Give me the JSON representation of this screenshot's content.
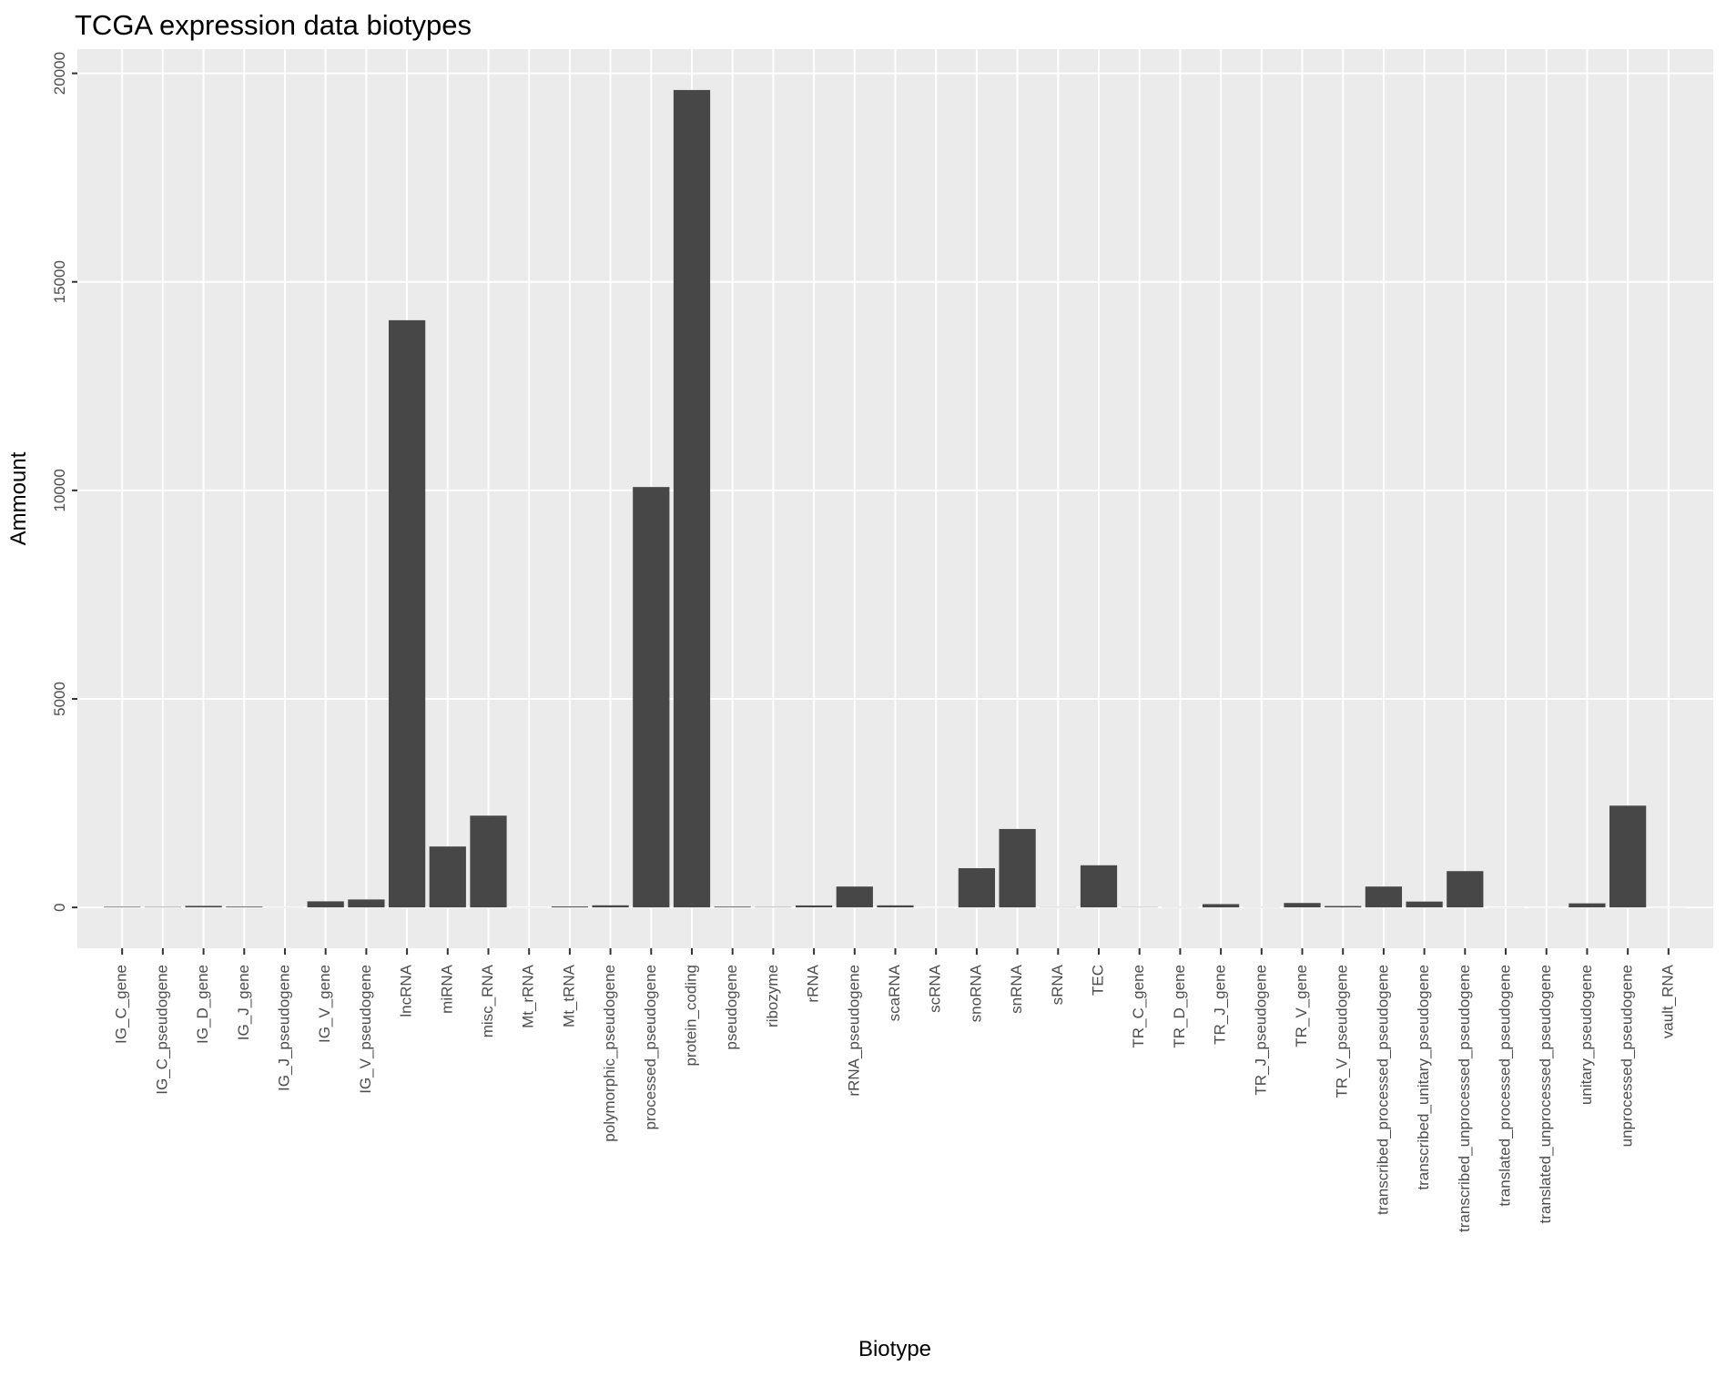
{
  "chart_data": {
    "type": "bar",
    "title": "TCGA expression data biotypes",
    "x_label": "Biotype",
    "y_label": "Ammount",
    "categories": [
      "IG_C_gene",
      "IG_C_pseudogene",
      "IG_D_gene",
      "IG_J_gene",
      "IG_J_pseudogene",
      "IG_V_gene",
      "IG_V_pseudogene",
      "lncRNA",
      "miRNA",
      "misc_RNA",
      "Mt_rRNA",
      "Mt_tRNA",
      "polymorphic_pseudogene",
      "processed_pseudogene",
      "protein_coding",
      "pseudogene",
      "ribozyme",
      "rRNA",
      "rRNA_pseudogene",
      "scaRNA",
      "scRNA",
      "snoRNA",
      "snRNA",
      "sRNA",
      "TEC",
      "TR_C_gene",
      "TR_D_gene",
      "TR_J_gene",
      "TR_J_pseudogene",
      "TR_V_gene",
      "TR_V_pseudogene",
      "transcribed_processed_pseudogene",
      "transcribed_unitary_pseudogene",
      "transcribed_unprocessed_pseudogene",
      "translated_processed_pseudogene",
      "translated_unprocessed_pseudogene",
      "unitary_pseudogene",
      "unprocessed_pseudogene",
      "vault_RNA"
    ],
    "values": [
      14,
      9,
      37,
      18,
      3,
      145,
      190,
      14080,
      1460,
      2200,
      2,
      22,
      50,
      10080,
      19600,
      18,
      8,
      47,
      500,
      49,
      1,
      940,
      1880,
      5,
      1010,
      6,
      4,
      79,
      4,
      106,
      33,
      500,
      140,
      870,
      2,
      1,
      97,
      2440,
      1
    ],
    "color": "#474747",
    "ylim": [
      -980,
      20580
    ],
    "yticks": [
      0,
      5000,
      10000,
      15000,
      20000
    ],
    "grid": true
  }
}
